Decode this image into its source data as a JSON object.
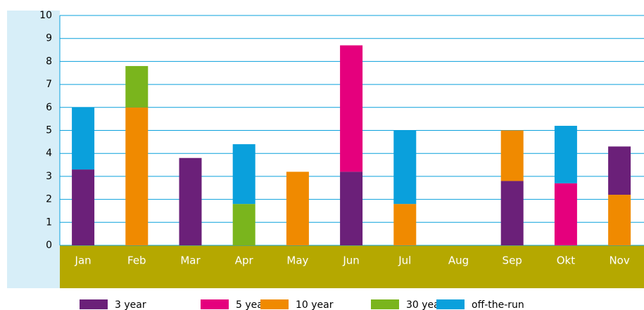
{
  "chart_data": {
    "type": "stacked-bar",
    "categories": [
      "Jan",
      "Feb",
      "Mar",
      "Apr",
      "May",
      "Jun",
      "Jul",
      "Aug",
      "Sep",
      "Okt",
      "Nov"
    ],
    "series": [
      {
        "name": "3 year",
        "color": "#6b2079",
        "values": [
          3.3,
          null,
          3.8,
          null,
          null,
          3.2,
          null,
          null,
          2.8,
          null,
          2.1
        ]
      },
      {
        "name": "5 year",
        "color": "#e5007d",
        "values": [
          null,
          null,
          null,
          null,
          null,
          5.5,
          null,
          null,
          null,
          2.7,
          null
        ]
      },
      {
        "name": "10 year",
        "color": "#f08a00",
        "values": [
          null,
          6.0,
          null,
          null,
          3.2,
          null,
          1.8,
          null,
          2.2,
          null,
          2.2
        ]
      },
      {
        "name": "30 year",
        "color": "#7ab51d",
        "values": [
          null,
          1.8,
          null,
          1.8,
          null,
          null,
          null,
          null,
          null,
          null,
          null
        ]
      },
      {
        "name": "off-the-run",
        "color": "#0aa0dc",
        "values": [
          2.7,
          null,
          null,
          2.6,
          null,
          null,
          3.2,
          null,
          null,
          2.5,
          null
        ]
      }
    ],
    "ylim": [
      0,
      10
    ],
    "yticks": [
      0,
      1,
      2,
      3,
      4,
      5,
      6,
      7,
      8,
      9,
      10
    ],
    "grid": true
  }
}
